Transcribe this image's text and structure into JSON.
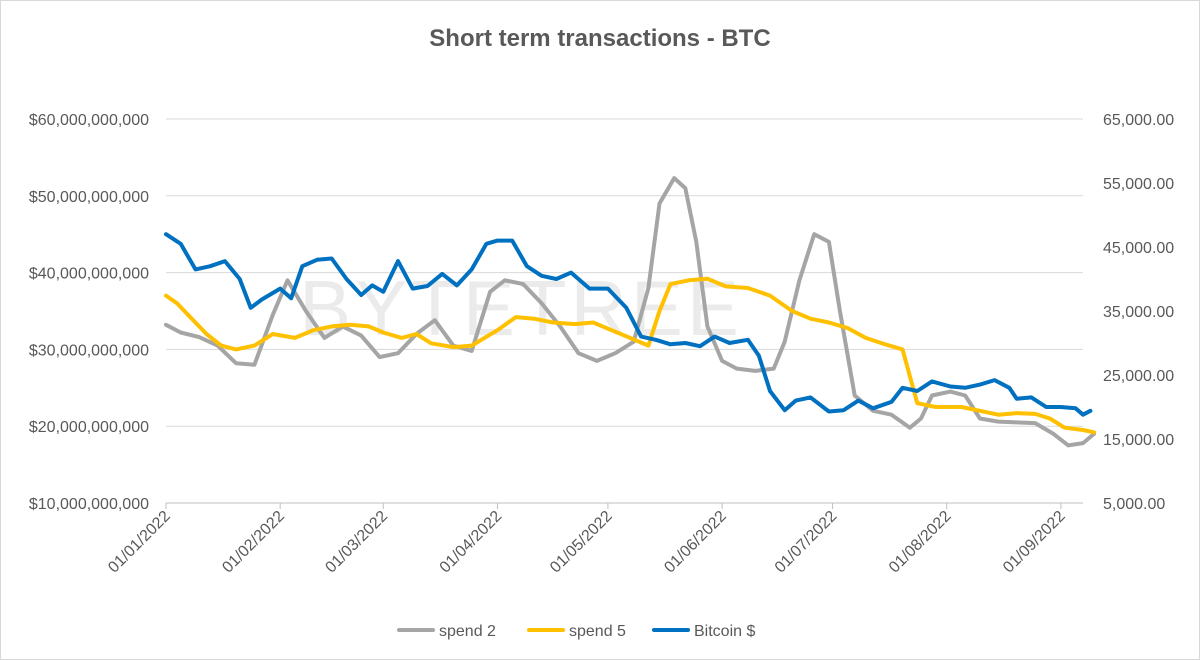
{
  "chart_data": {
    "type": "line",
    "title": "Short term transactions - BTC",
    "watermark": "BYTETREE",
    "x_ticks": [
      "01/01/2022",
      "01/02/2022",
      "01/03/2022",
      "01/04/2022",
      "01/05/2022",
      "01/06/2022",
      "01/07/2022",
      "01/08/2022",
      "01/09/2022"
    ],
    "x_range": [
      "01/01/2022",
      "07/09/2022"
    ],
    "left_axis": {
      "ticks": [
        "$10,000,000,000",
        "$20,000,000,000",
        "$30,000,000,000",
        "$40,000,000,000",
        "$50,000,000,000",
        "$60,000,000,000"
      ],
      "ylim": [
        10000000000,
        60000000000
      ]
    },
    "right_axis": {
      "ticks": [
        "5,000.00",
        "15,000.00",
        "25,000.00",
        "35,000.00",
        "45,000.00",
        "55,000.00",
        "65,000.00"
      ],
      "ylim": [
        5000,
        65000
      ]
    },
    "gridlines": true,
    "legend_position": "bottom",
    "series": [
      {
        "name": "spend 2",
        "axis": "left",
        "color": "#A5A5A5",
        "points": [
          [
            "01/01/2022",
            33200000000
          ],
          [
            "05/01/2022",
            32200000000
          ],
          [
            "10/01/2022",
            31600000000
          ],
          [
            "15/01/2022",
            30500000000
          ],
          [
            "20/01/2022",
            28200000000
          ],
          [
            "25/01/2022",
            28000000000
          ],
          [
            "30/01/2022",
            34500000000
          ],
          [
            "03/02/2022",
            39000000000
          ],
          [
            "08/02/2022",
            35000000000
          ],
          [
            "13/02/2022",
            31500000000
          ],
          [
            "18/02/2022",
            33000000000
          ],
          [
            "23/02/2022",
            31800000000
          ],
          [
            "28/02/2022",
            29000000000
          ],
          [
            "05/03/2022",
            29500000000
          ],
          [
            "10/03/2022",
            32000000000
          ],
          [
            "15/03/2022",
            33800000000
          ],
          [
            "20/03/2022",
            30500000000
          ],
          [
            "25/03/2022",
            29800000000
          ],
          [
            "30/03/2022",
            37500000000
          ],
          [
            "03/04/2022",
            39000000000
          ],
          [
            "08/04/2022",
            38500000000
          ],
          [
            "13/04/2022",
            36000000000
          ],
          [
            "18/04/2022",
            33000000000
          ],
          [
            "23/04/2022",
            29500000000
          ],
          [
            "28/04/2022",
            28500000000
          ],
          [
            "03/05/2022",
            29500000000
          ],
          [
            "08/05/2022",
            31000000000
          ],
          [
            "12/05/2022",
            38000000000
          ],
          [
            "15/05/2022",
            49000000000
          ],
          [
            "19/05/2022",
            52300000000
          ],
          [
            "22/05/2022",
            51000000000
          ],
          [
            "25/05/2022",
            44000000000
          ],
          [
            "28/05/2022",
            33000000000
          ],
          [
            "01/06/2022",
            28500000000
          ],
          [
            "05/06/2022",
            27500000000
          ],
          [
            "10/06/2022",
            27200000000
          ],
          [
            "15/06/2022",
            27500000000
          ],
          [
            "18/06/2022",
            31000000000
          ],
          [
            "22/06/2022",
            39000000000
          ],
          [
            "26/06/2022",
            45000000000
          ],
          [
            "30/06/2022",
            44000000000
          ],
          [
            "03/07/2022",
            35000000000
          ],
          [
            "07/07/2022",
            24000000000
          ],
          [
            "12/07/2022",
            22000000000
          ],
          [
            "17/07/2022",
            21500000000
          ],
          [
            "22/07/2022",
            19800000000
          ],
          [
            "25/07/2022",
            21000000000
          ],
          [
            "28/07/2022",
            24000000000
          ],
          [
            "02/08/2022",
            24500000000
          ],
          [
            "06/08/2022",
            24000000000
          ],
          [
            "10/08/2022",
            21000000000
          ],
          [
            "15/08/2022",
            20600000000
          ],
          [
            "20/08/2022",
            20500000000
          ],
          [
            "25/08/2022",
            20400000000
          ],
          [
            "30/08/2022",
            19000000000
          ],
          [
            "03/09/2022",
            17500000000
          ],
          [
            "07/09/2022",
            17800000000
          ],
          [
            "10/09/2022",
            19000000000
          ]
        ]
      },
      {
        "name": "spend 5",
        "axis": "left",
        "color": "#FFC000",
        "points": [
          [
            "01/01/2022",
            37000000000
          ],
          [
            "04/01/2022",
            36000000000
          ],
          [
            "08/01/2022",
            34000000000
          ],
          [
            "12/01/2022",
            32000000000
          ],
          [
            "16/01/2022",
            30500000000
          ],
          [
            "20/01/2022",
            30000000000
          ],
          [
            "25/01/2022",
            30500000000
          ],
          [
            "30/01/2022",
            32000000000
          ],
          [
            "05/02/2022",
            31500000000
          ],
          [
            "10/02/2022",
            32500000000
          ],
          [
            "15/02/2022",
            33000000000
          ],
          [
            "20/02/2022",
            33200000000
          ],
          [
            "25/02/2022",
            33000000000
          ],
          [
            "01/03/2022",
            32200000000
          ],
          [
            "06/03/2022",
            31500000000
          ],
          [
            "10/03/2022",
            32000000000
          ],
          [
            "14/03/2022",
            30800000000
          ],
          [
            "20/03/2022",
            30300000000
          ],
          [
            "25/03/2022",
            30500000000
          ],
          [
            "01/04/2022",
            32500000000
          ],
          [
            "06/04/2022",
            34200000000
          ],
          [
            "11/04/2022",
            34000000000
          ],
          [
            "16/04/2022",
            33500000000
          ],
          [
            "22/04/2022",
            33300000000
          ],
          [
            "27/04/2022",
            33500000000
          ],
          [
            "02/05/2022",
            32500000000
          ],
          [
            "07/05/2022",
            31500000000
          ],
          [
            "12/05/2022",
            30500000000
          ],
          [
            "15/05/2022",
            35000000000
          ],
          [
            "18/05/2022",
            38500000000
          ],
          [
            "23/05/2022",
            39000000000
          ],
          [
            "28/05/2022",
            39200000000
          ],
          [
            "02/06/2022",
            38200000000
          ],
          [
            "08/06/2022",
            38000000000
          ],
          [
            "14/06/2022",
            37000000000
          ],
          [
            "20/06/2022",
            35000000000
          ],
          [
            "25/06/2022",
            34000000000
          ],
          [
            "30/06/2022",
            33500000000
          ],
          [
            "05/07/2022",
            32800000000
          ],
          [
            "10/07/2022",
            31500000000
          ],
          [
            "15/07/2022",
            30700000000
          ],
          [
            "20/07/2022",
            30000000000
          ],
          [
            "24/07/2022",
            23000000000
          ],
          [
            "29/07/2022",
            22500000000
          ],
          [
            "05/08/2022",
            22500000000
          ],
          [
            "10/08/2022",
            22000000000
          ],
          [
            "15/08/2022",
            21500000000
          ],
          [
            "20/08/2022",
            21700000000
          ],
          [
            "25/08/2022",
            21600000000
          ],
          [
            "29/08/2022",
            21000000000
          ],
          [
            "02/09/2022",
            19800000000
          ],
          [
            "07/09/2022",
            19500000000
          ],
          [
            "10/09/2022",
            19200000000
          ]
        ]
      },
      {
        "name": "Bitcoin $",
        "axis": "right",
        "color": "#0070C0",
        "points": [
          [
            "01/01/2022",
            47000
          ],
          [
            "05/01/2022",
            45500
          ],
          [
            "09/01/2022",
            41500
          ],
          [
            "13/01/2022",
            42000
          ],
          [
            "17/01/2022",
            42800
          ],
          [
            "21/01/2022",
            40000
          ],
          [
            "24/01/2022",
            35500
          ],
          [
            "27/01/2022",
            36800
          ],
          [
            "01/02/2022",
            38500
          ],
          [
            "04/02/2022",
            37000
          ],
          [
            "07/02/2022",
            42000
          ],
          [
            "11/02/2022",
            43000
          ],
          [
            "15/02/2022",
            43200
          ],
          [
            "19/02/2022",
            40000
          ],
          [
            "23/02/2022",
            37500
          ],
          [
            "26/02/2022",
            39000
          ],
          [
            "01/03/2022",
            38000
          ],
          [
            "05/03/2022",
            42800
          ],
          [
            "09/03/2022",
            38500
          ],
          [
            "13/03/2022",
            38900
          ],
          [
            "17/03/2022",
            40800
          ],
          [
            "21/03/2022",
            39000
          ],
          [
            "25/03/2022",
            41500
          ],
          [
            "29/03/2022",
            45500
          ],
          [
            "01/04/2022",
            46000
          ],
          [
            "05/04/2022",
            46000
          ],
          [
            "09/04/2022",
            42000
          ],
          [
            "13/04/2022",
            40500
          ],
          [
            "17/04/2022",
            40000
          ],
          [
            "21/04/2022",
            41000
          ],
          [
            "26/04/2022",
            38500
          ],
          [
            "01/05/2022",
            38500
          ],
          [
            "06/05/2022",
            35500
          ],
          [
            "10/05/2022",
            31000
          ],
          [
            "14/05/2022",
            30500
          ],
          [
            "18/05/2022",
            29800
          ],
          [
            "22/05/2022",
            30000
          ],
          [
            "26/05/2022",
            29500
          ],
          [
            "30/05/2022",
            31000
          ],
          [
            "03/06/2022",
            30000
          ],
          [
            "08/06/2022",
            30500
          ],
          [
            "11/06/2022",
            28000
          ],
          [
            "14/06/2022",
            22500
          ],
          [
            "18/06/2022",
            19500
          ],
          [
            "21/06/2022",
            21000
          ],
          [
            "25/06/2022",
            21500
          ],
          [
            "30/06/2022",
            19300
          ],
          [
            "04/07/2022",
            19500
          ],
          [
            "08/07/2022",
            21000
          ],
          [
            "12/07/2022",
            19800
          ],
          [
            "17/07/2022",
            20800
          ],
          [
            "20/07/2022",
            23000
          ],
          [
            "24/07/2022",
            22500
          ],
          [
            "28/07/2022",
            24000
          ],
          [
            "02/08/2022",
            23200
          ],
          [
            "06/08/2022",
            23000
          ],
          [
            "10/08/2022",
            23500
          ],
          [
            "14/08/2022",
            24200
          ],
          [
            "18/08/2022",
            23000
          ],
          [
            "20/08/2022",
            21300
          ],
          [
            "24/08/2022",
            21500
          ],
          [
            "28/08/2022",
            20000
          ],
          [
            "01/09/2022",
            20000
          ],
          [
            "05/09/2022",
            19800
          ],
          [
            "07/09/2022",
            18800
          ],
          [
            "09/09/2022",
            19400
          ]
        ]
      }
    ]
  }
}
